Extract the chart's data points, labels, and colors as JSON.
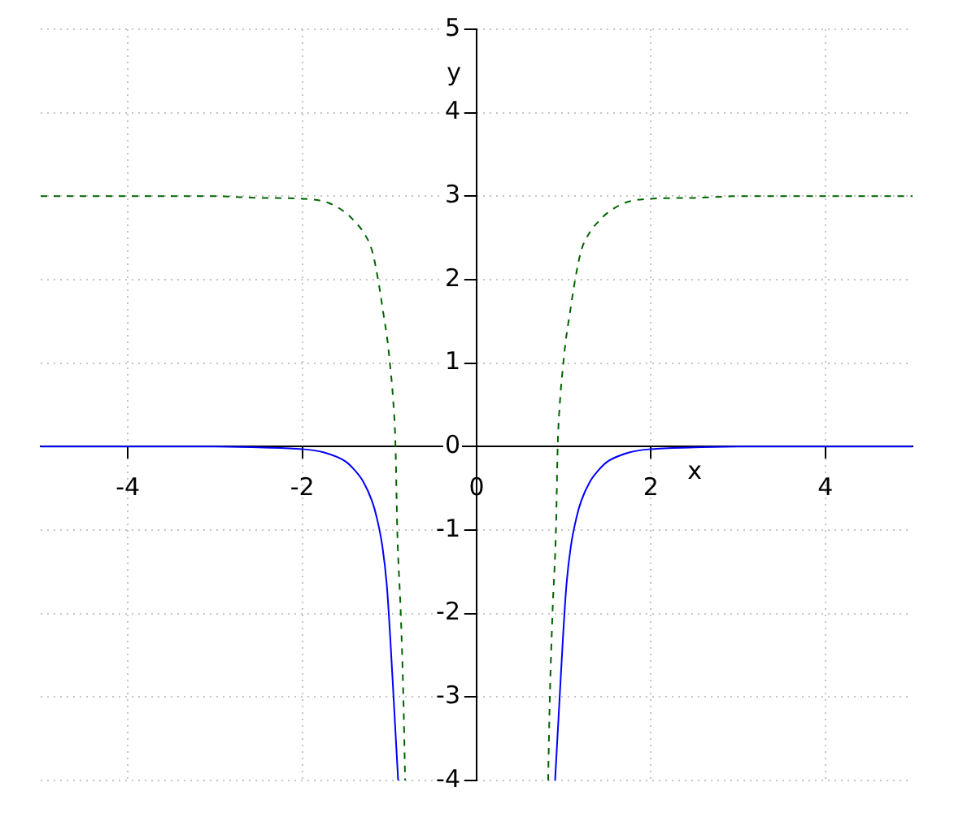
{
  "chart_data": {
    "type": "line",
    "xlabel": "x",
    "ylabel": "y",
    "xlim": [
      -5,
      5
    ],
    "ylim": [
      -4,
      5
    ],
    "xticks": [
      -4,
      -2,
      0,
      2,
      4
    ],
    "yticks": [
      -4,
      -3,
      -2,
      -1,
      0,
      1,
      2,
      3,
      4,
      5
    ],
    "grid": true,
    "marker": "none",
    "series": [
      {
        "color": "#0000ff",
        "line_style": "solid",
        "x": [
          -5,
          -3,
          -2.5,
          -2,
          -1.75,
          -1.5,
          -1.4,
          -1.3,
          -1.2,
          -1.15,
          -1.08,
          -1.03,
          -0.99,
          -0.95,
          -0.9,
          0,
          0.9,
          0.95,
          0.99,
          1.03,
          1.08,
          1.15,
          1.2,
          1.3,
          1.4,
          1.5,
          1.75,
          2,
          2.5,
          3,
          5
        ],
        "values": [
          0,
          0,
          -0.01,
          -0.03,
          -0.07,
          -0.18,
          -0.28,
          -0.42,
          -0.65,
          -0.83,
          -1.2,
          -1.66,
          -2.3,
          -3.05,
          -4,
          null,
          -4,
          -3.05,
          -2.3,
          -1.66,
          -1.2,
          -0.83,
          -0.65,
          -0.42,
          -0.28,
          -0.18,
          -0.07,
          -0.03,
          -0.01,
          0,
          0
        ]
      },
      {
        "color": "#006400",
        "line_style": "dashed",
        "x": [
          -5,
          -3,
          -2.5,
          -2,
          -1.7,
          -1.5,
          -1.4,
          -1.3,
          -1.2,
          -1.13,
          -1.07,
          -1.02,
          -0.99,
          -0.96,
          -0.93,
          -0.91,
          -0.87,
          -0.84,
          -0.82,
          0,
          0.82,
          0.84,
          0.87,
          0.91,
          0.93,
          0.96,
          0.99,
          1.02,
          1.07,
          1.13,
          1.2,
          1.3,
          1.4,
          1.5,
          1.7,
          2,
          2.5,
          3,
          5
        ],
        "values": [
          3,
          3,
          2.98,
          2.97,
          2.92,
          2.8,
          2.7,
          2.57,
          2.35,
          2,
          1.6,
          1.25,
          0.95,
          0.6,
          0,
          -1,
          -2,
          -3,
          -4,
          null,
          -4,
          -3,
          -2,
          -1,
          0,
          0.6,
          0.95,
          1.25,
          1.6,
          2,
          2.35,
          2.57,
          2.7,
          2.8,
          2.92,
          2.97,
          2.98,
          3,
          3
        ]
      }
    ]
  }
}
